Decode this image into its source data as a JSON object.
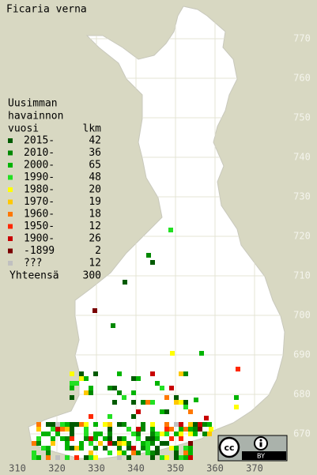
{
  "title": "Ficaria verna",
  "legend": {
    "header": [
      "Uusimman",
      "havainnon",
      "vuosi"
    ],
    "count_header": "lkm",
    "entries": [
      {
        "label": "2015-",
        "count": 42,
        "color": "#005a00"
      },
      {
        "label": "2010-",
        "count": 36,
        "color": "#008800"
      },
      {
        "label": "2000-",
        "count": 65,
        "color": "#00b400"
      },
      {
        "label": "1990-",
        "count": 48,
        "color": "#22e022"
      },
      {
        "label": "1980-",
        "count": 20,
        "color": "#ffff00"
      },
      {
        "label": "1970-",
        "count": 19,
        "color": "#ffc800"
      },
      {
        "label": "1960-",
        "count": 18,
        "color": "#ff7800"
      },
      {
        "label": "1950-",
        "count": 12,
        "color": "#ff2800"
      },
      {
        "label": "1900-",
        "count": 26,
        "color": "#c80000"
      },
      {
        "label": "-1899",
        "count": 2,
        "color": "#7a0000"
      },
      {
        "label": "???",
        "count": 12,
        "color": "#c0c0c0"
      }
    ],
    "total": {
      "label": "Yhteensä",
      "count": 300
    }
  },
  "map": {
    "xticks": [
      310,
      320,
      330,
      340,
      350,
      360,
      370
    ],
    "yticks": [
      670,
      680,
      690,
      700,
      710,
      720,
      730,
      740,
      750,
      760,
      770
    ],
    "grid": true
  },
  "license": {
    "icon": "cc",
    "label": "BY"
  }
}
